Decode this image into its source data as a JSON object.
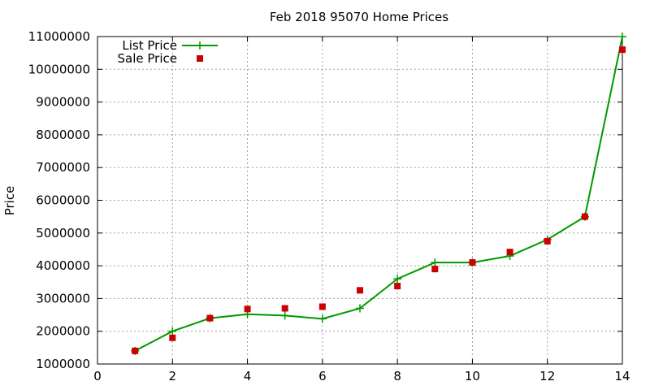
{
  "chart_data": {
    "type": "line",
    "title": "Feb 2018 95070 Home Prices",
    "xlabel": "",
    "ylabel": "Price",
    "xlim": [
      0,
      14
    ],
    "ylim": [
      1000000,
      11000000
    ],
    "xticks": [
      0,
      2,
      4,
      6,
      8,
      10,
      12,
      14
    ],
    "yticks": [
      1000000,
      2000000,
      3000000,
      4000000,
      5000000,
      6000000,
      7000000,
      8000000,
      9000000,
      10000000,
      11000000
    ],
    "grid": true,
    "legend_position": "top-left",
    "series": [
      {
        "name": "List Price",
        "style": "line+cross",
        "color": "#009900",
        "x": [
          1,
          2,
          3,
          4,
          5,
          6,
          7,
          8,
          9,
          10,
          11,
          12,
          13,
          14
        ],
        "values": [
          1400000,
          2000000,
          2400000,
          2520000,
          2480000,
          2380000,
          2700000,
          3600000,
          4100000,
          4100000,
          4300000,
          4800000,
          5500000,
          11000000
        ]
      },
      {
        "name": "Sale Price",
        "style": "square",
        "color": "#cc0000",
        "x": [
          1,
          2,
          3,
          4,
          5,
          6,
          7,
          8,
          9,
          10,
          11,
          12,
          13,
          14
        ],
        "values": [
          1400000,
          1800000,
          2400000,
          2680000,
          2700000,
          2750000,
          3250000,
          3380000,
          3900000,
          4100000,
          4420000,
          4750000,
          5500000,
          10600000
        ]
      }
    ]
  }
}
